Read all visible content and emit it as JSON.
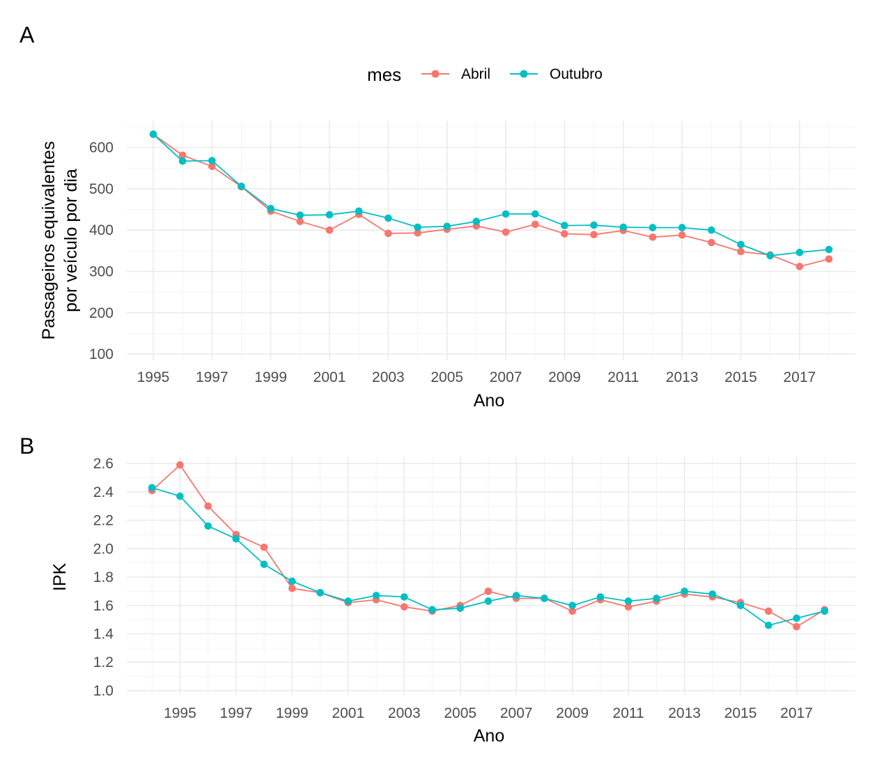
{
  "legend": {
    "title": "mes",
    "entries": [
      {
        "label": "Abril",
        "color": "#F8766D"
      },
      {
        "label": "Outubro",
        "color": "#00BFC4"
      }
    ]
  },
  "chart_data": [
    {
      "tag": "A",
      "type": "line",
      "xlabel": "Ano",
      "ylabel_lines": [
        "Passageiros equivalentes",
        "por veículo por dia"
      ],
      "xlim": [
        1994.1,
        2018.9
      ],
      "ylim": [
        85,
        665
      ],
      "xticks": [
        1995,
        1997,
        1999,
        2001,
        2003,
        2005,
        2007,
        2009,
        2011,
        2013,
        2015,
        2017
      ],
      "yticks": [
        100,
        200,
        300,
        400,
        500,
        600
      ],
      "grid": true,
      "series": [
        {
          "name": "Abril",
          "color": "#F8766D",
          "x": [
            1995,
            1996,
            1997,
            1998,
            1999,
            2000,
            2001,
            2002,
            2003,
            2004,
            2005,
            2006,
            2007,
            2008,
            2009,
            2010,
            2011,
            2012,
            2013,
            2014,
            2015,
            2016,
            2017,
            2018
          ],
          "y": [
            632,
            581,
            554,
            505,
            446,
            421,
            400,
            438,
            392,
            393,
            402,
            410,
            395,
            414,
            391,
            389,
            399,
            383,
            388,
            370,
            348,
            340,
            312,
            330
          ]
        },
        {
          "name": "Outubro",
          "color": "#00BFC4",
          "x": [
            1995,
            1996,
            1997,
            1998,
            1999,
            2000,
            2001,
            2002,
            2003,
            2004,
            2005,
            2006,
            2007,
            2008,
            2009,
            2010,
            2011,
            2012,
            2013,
            2014,
            2015,
            2016,
            2017,
            2018
          ],
          "y": [
            632,
            567,
            568,
            506,
            452,
            436,
            437,
            446,
            429,
            407,
            409,
            421,
            439,
            439,
            411,
            412,
            407,
            406,
            406,
            400,
            365,
            338,
            346,
            353
          ]
        }
      ]
    },
    {
      "tag": "B",
      "type": "line",
      "xlabel": "Ano",
      "ylabel_lines": [
        "IPK"
      ],
      "xlim": [
        1993.1,
        2019.1
      ],
      "ylim": [
        0.97,
        2.65
      ],
      "xticks": [
        1995,
        1997,
        1999,
        2001,
        2003,
        2005,
        2007,
        2009,
        2011,
        2013,
        2015,
        2017
      ],
      "yticks": [
        1.0,
        1.2,
        1.4,
        1.6,
        1.8,
        2.0,
        2.2,
        2.4,
        2.6
      ],
      "ytick_labels": [
        "1.0",
        "1.2",
        "1.4",
        "1.6",
        "1.8",
        "2.0",
        "2.2",
        "2.4",
        "2.6"
      ],
      "grid": true,
      "series": [
        {
          "name": "Abril",
          "color": "#F8766D",
          "x": [
            1994,
            1995,
            1996,
            1997,
            1998,
            1999,
            2000,
            2001,
            2002,
            2003,
            2004,
            2005,
            2006,
            2007,
            2008,
            2009,
            2010,
            2011,
            2012,
            2013,
            2014,
            2015,
            2016,
            2017,
            2018
          ],
          "y": [
            2.41,
            2.59,
            2.3,
            2.1,
            2.01,
            1.72,
            1.69,
            1.62,
            1.64,
            1.59,
            1.56,
            1.6,
            1.7,
            1.65,
            1.65,
            1.56,
            1.64,
            1.59,
            1.63,
            1.68,
            1.66,
            1.62,
            1.56,
            1.45,
            1.57
          ]
        },
        {
          "name": "Outubro",
          "color": "#00BFC4",
          "x": [
            1994,
            1995,
            1996,
            1997,
            1998,
            1999,
            2000,
            2001,
            2002,
            2003,
            2004,
            2005,
            2006,
            2007,
            2008,
            2009,
            2010,
            2011,
            2012,
            2013,
            2014,
            2015,
            2016,
            2017,
            2018
          ],
          "y": [
            2.43,
            2.37,
            2.16,
            2.07,
            1.89,
            1.77,
            1.69,
            1.63,
            1.67,
            1.66,
            1.57,
            1.58,
            1.63,
            1.67,
            1.65,
            1.6,
            1.66,
            1.63,
            1.65,
            1.7,
            1.68,
            1.6,
            1.46,
            1.51,
            1.56
          ]
        }
      ]
    }
  ]
}
